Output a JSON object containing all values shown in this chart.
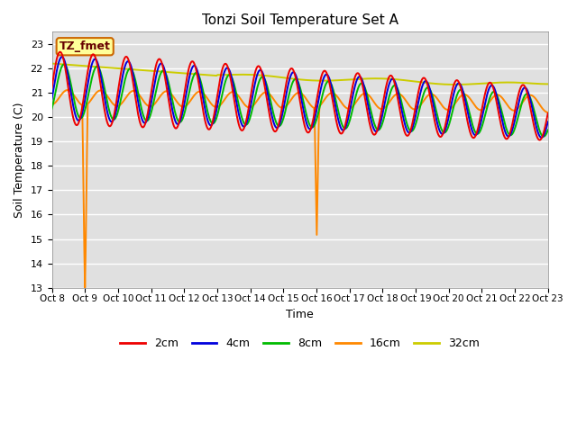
{
  "title": "Tonzi Soil Temperature Set A",
  "xlabel": "Time",
  "ylabel": "Soil Temperature (C)",
  "ylim": [
    13.0,
    23.5
  ],
  "yticks": [
    13.0,
    14.0,
    15.0,
    16.0,
    17.0,
    18.0,
    19.0,
    20.0,
    21.0,
    22.0,
    23.0
  ],
  "bg_color": "#e0e0e0",
  "grid_color": "#ffffff",
  "annotation_text": "TZ_fmet",
  "annotation_bg": "#ffff99",
  "annotation_border": "#cc6600",
  "colors": {
    "2cm": "#ee0000",
    "4cm": "#0000dd",
    "8cm": "#00bb00",
    "16cm": "#ff8800",
    "32cm": "#cccc00"
  },
  "line_width": 1.4,
  "xtick_labels": [
    "Oct 8",
    "Oct 9",
    "Oct 10",
    "Oct 11",
    "Oct 12",
    "Oct 13",
    "Oct 14",
    "Oct 15",
    "Oct 16",
    "Oct 17",
    "Oct 18",
    "Oct 19",
    "Oct 20",
    "Oct 21",
    "Oct 22",
    "Oct 23"
  ],
  "num_points": 720,
  "days": 15
}
